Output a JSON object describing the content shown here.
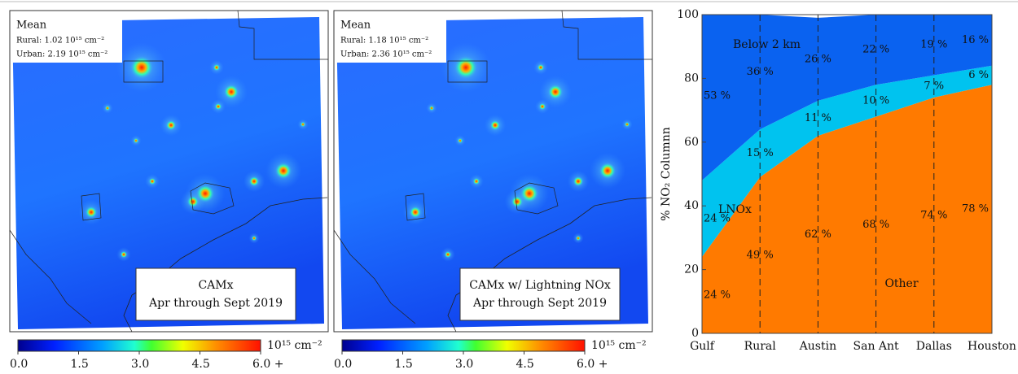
{
  "maps": [
    {
      "stat_title": "Mean",
      "rural": "Rural: 1.02 10¹⁵ cm⁻²",
      "urban": "Urban: 2.19 10¹⁵ cm⁻²",
      "title": "CAMx",
      "period": "Apr through Sept 2019"
    },
    {
      "stat_title": "Mean",
      "rural": "Rural: 1.18 10¹⁵ cm⁻²",
      "urban": "Urban: 2.36 10¹⁵ cm⁻²",
      "title": "CAMx w/ Lightning NOx",
      "period": "Apr through Sept 2019"
    }
  ],
  "colorbar": {
    "lim": [
      0,
      6
    ],
    "unit": "10¹⁵ cm⁻²",
    "ticks": [
      {
        "value": 0,
        "label": "0.0"
      },
      1.5,
      {
        "value": 3,
        "label": "3.0"
      },
      4.5,
      {
        "value": 6,
        "label": "6.0 +"
      }
    ]
  },
  "chart_data": {
    "type": "area",
    "ylabel": "% NO₂ Columnn",
    "categories": [
      "Gulf",
      "Rural",
      "Austin",
      "San Ant",
      "Dallas",
      "Houston"
    ],
    "series": [
      {
        "name": "Below 2 km",
        "color": "#ff7a00",
        "values": [
          24,
          49,
          62,
          68,
          74,
          78
        ],
        "value_labels": [
          "24 %",
          "49 %",
          "62 %",
          "68 %",
          "74 %",
          "78 %"
        ]
      },
      {
        "name": "LNOx",
        "color": "#00c3ef",
        "values": [
          24,
          15,
          11,
          10,
          7,
          6
        ],
        "value_labels": [
          "24 %",
          "15 %",
          "11 %",
          "10 %",
          "7 %",
          "6 %"
        ]
      },
      {
        "name": "Other",
        "color": "#0a62f0",
        "values": [
          53,
          36,
          26,
          22,
          19,
          16
        ],
        "value_labels": [
          "53 %",
          "36 %",
          "26 %",
          "22 %",
          "19 %",
          "16 %"
        ]
      }
    ],
    "ylim": [
      0,
      100
    ],
    "yticks": [
      0,
      20,
      40,
      60,
      80,
      100
    ],
    "grid": true
  }
}
